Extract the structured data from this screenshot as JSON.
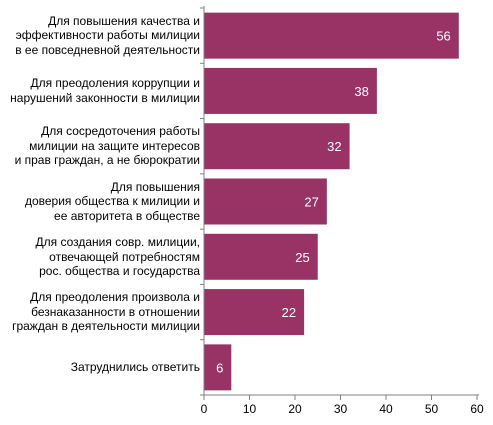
{
  "chart_data": {
    "type": "bar",
    "orientation": "horizontal",
    "categories": [
      "Для повышения качества и\nэффективности работы милиции\nв ее повседневной деятельности",
      "Для преодоления коррупции и\nнарушений законности в милиции",
      "Для сосредоточения работы\nмилиции на защите интересов\nи прав граждан, а не бюрократии",
      "Для повышения\nдоверия общества к милиции и\nее авторитета в обществе",
      "Для создания совр. милиции,\nотвечающей потребностям\nрос. общества и государства",
      "Для преодоления произвола и\nбезнаказанности в отношении\nграждан в деятельности милиции",
      "Затруднились ответить"
    ],
    "values": [
      56,
      38,
      32,
      27,
      25,
      22,
      6
    ],
    "xlim": [
      0,
      60
    ],
    "xticks": [
      0,
      10,
      20,
      30,
      40,
      50,
      60
    ],
    "grid": false,
    "bar_color": "#993366",
    "value_label_color": "#ffffff"
  }
}
